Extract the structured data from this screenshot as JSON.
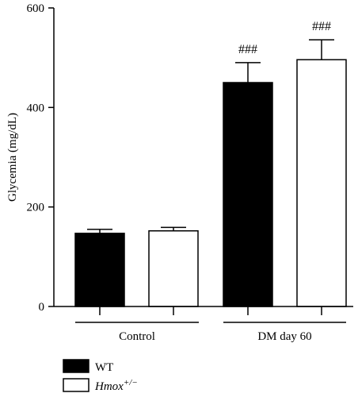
{
  "chart_data": {
    "type": "bar",
    "title": "",
    "xlabel": "",
    "ylabel": "Glycemia (mg/dL)",
    "ylim": [
      0,
      600
    ],
    "yticks": [
      0,
      200,
      400,
      600
    ],
    "grid": false,
    "legend_position": "bottom-left",
    "categories": [
      "Control",
      "DM day 60"
    ],
    "series": [
      {
        "name": "WT",
        "color": "#000000",
        "fill": "#000000",
        "values": [
          147,
          450
        ],
        "errors": [
          8,
          40
        ]
      },
      {
        "name": "Hmox",
        "name_superscript": "+/−",
        "color": "#000000",
        "fill": "#ffffff",
        "values": [
          152,
          496
        ],
        "errors": [
          7,
          40
        ]
      }
    ],
    "annotations": [
      {
        "category": 1,
        "series": 0,
        "text": "###"
      },
      {
        "category": 1,
        "series": 1,
        "text": "###"
      }
    ]
  }
}
